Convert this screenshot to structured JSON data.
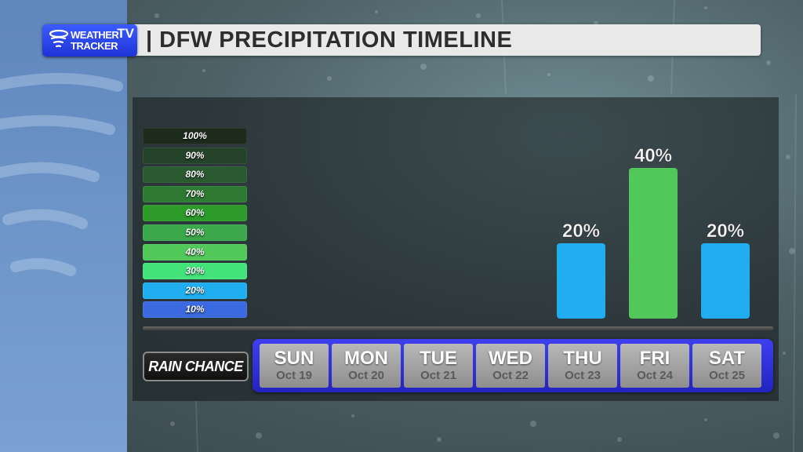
{
  "header": {
    "logo_line1": "WEATHER",
    "logo_line2": "TRACKER",
    "logo_tv": "TV",
    "title": "| DFW PRECIPITATION TIMELINE"
  },
  "legend": {
    "items": [
      {
        "label": "100%",
        "color": "#1d2b1c"
      },
      {
        "label": "90%",
        "color": "#25432a"
      },
      {
        "label": "80%",
        "color": "#2b5a31"
      },
      {
        "label": "70%",
        "color": "#2e7a32"
      },
      {
        "label": "60%",
        "color": "#2d9b2a"
      },
      {
        "label": "50%",
        "color": "#3aa84b"
      },
      {
        "label": "40%",
        "color": "#52c85a"
      },
      {
        "label": "30%",
        "color": "#43e37a"
      },
      {
        "label": "20%",
        "color": "#20aef0"
      },
      {
        "label": "10%",
        "color": "#3b6ae0"
      }
    ]
  },
  "rain_label": "RAIN CHANCE",
  "chart_data": {
    "type": "bar",
    "categories": [
      "SUN",
      "MON",
      "TUE",
      "WED",
      "THU",
      "FRI",
      "SAT"
    ],
    "dates": [
      "Oct 19",
      "Oct 20",
      "Oct 21",
      "Oct 22",
      "Oct 23",
      "Oct 24",
      "Oct 25"
    ],
    "values": [
      0,
      0,
      0,
      0,
      20,
      40,
      20
    ],
    "value_labels": [
      "",
      "",
      "",
      "",
      "20%",
      "40%",
      "20%"
    ],
    "bar_colors": [
      "#20aef0",
      "#20aef0",
      "#20aef0",
      "#20aef0",
      "#20aef0",
      "#52c85a",
      "#20aef0"
    ],
    "ylim": [
      0,
      100
    ],
    "title": "DFW PRECIPITATION TIMELINE"
  }
}
